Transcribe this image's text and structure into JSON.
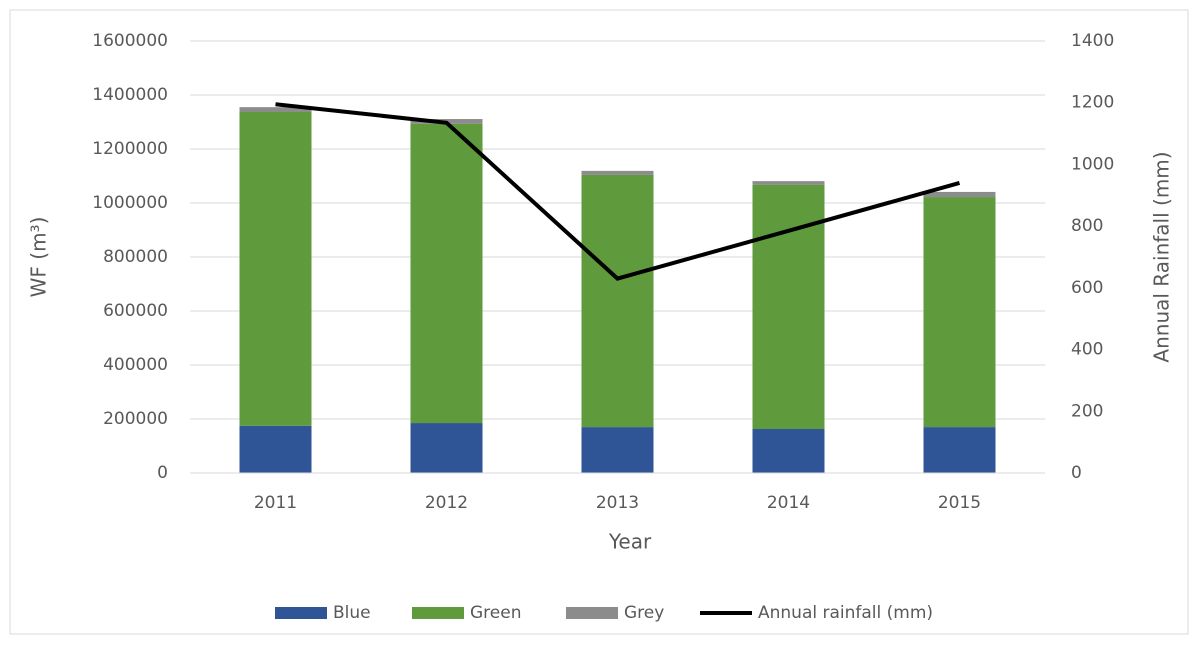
{
  "chart_data": {
    "type": "bar",
    "stacked": true,
    "x_label": "Year",
    "y_label": "WF (m³)",
    "y2_label": "Annual Rainfall (mm)",
    "categories": [
      "2011",
      "2012",
      "2013",
      "2014",
      "2015"
    ],
    "series": [
      {
        "name": "Blue",
        "color": "#2f5597",
        "values": [
          175000,
          185000,
          170000,
          163000,
          170000
        ]
      },
      {
        "name": "Green",
        "color": "#5f9a3c",
        "values": [
          1162000,
          1108000,
          934000,
          904000,
          852000
        ]
      },
      {
        "name": "Grey",
        "color": "#8c8c8c",
        "values": [
          18000,
          18000,
          15000,
          14000,
          19000
        ]
      },
      {
        "name": "Annual rainfall (mm)",
        "type": "line",
        "axis": "y2",
        "color": "#000000",
        "values": [
          1195,
          1135,
          630,
          785,
          940
        ]
      }
    ],
    "ylim": [
      0,
      1600000
    ],
    "yticks": [
      0,
      200000,
      400000,
      600000,
      800000,
      1000000,
      1200000,
      1400000,
      1600000
    ],
    "y2lim": [
      0,
      1400
    ],
    "y2ticks": [
      0,
      200,
      400,
      600,
      800,
      1000,
      1200,
      1400
    ],
    "grid": true,
    "legend": "bottom"
  }
}
